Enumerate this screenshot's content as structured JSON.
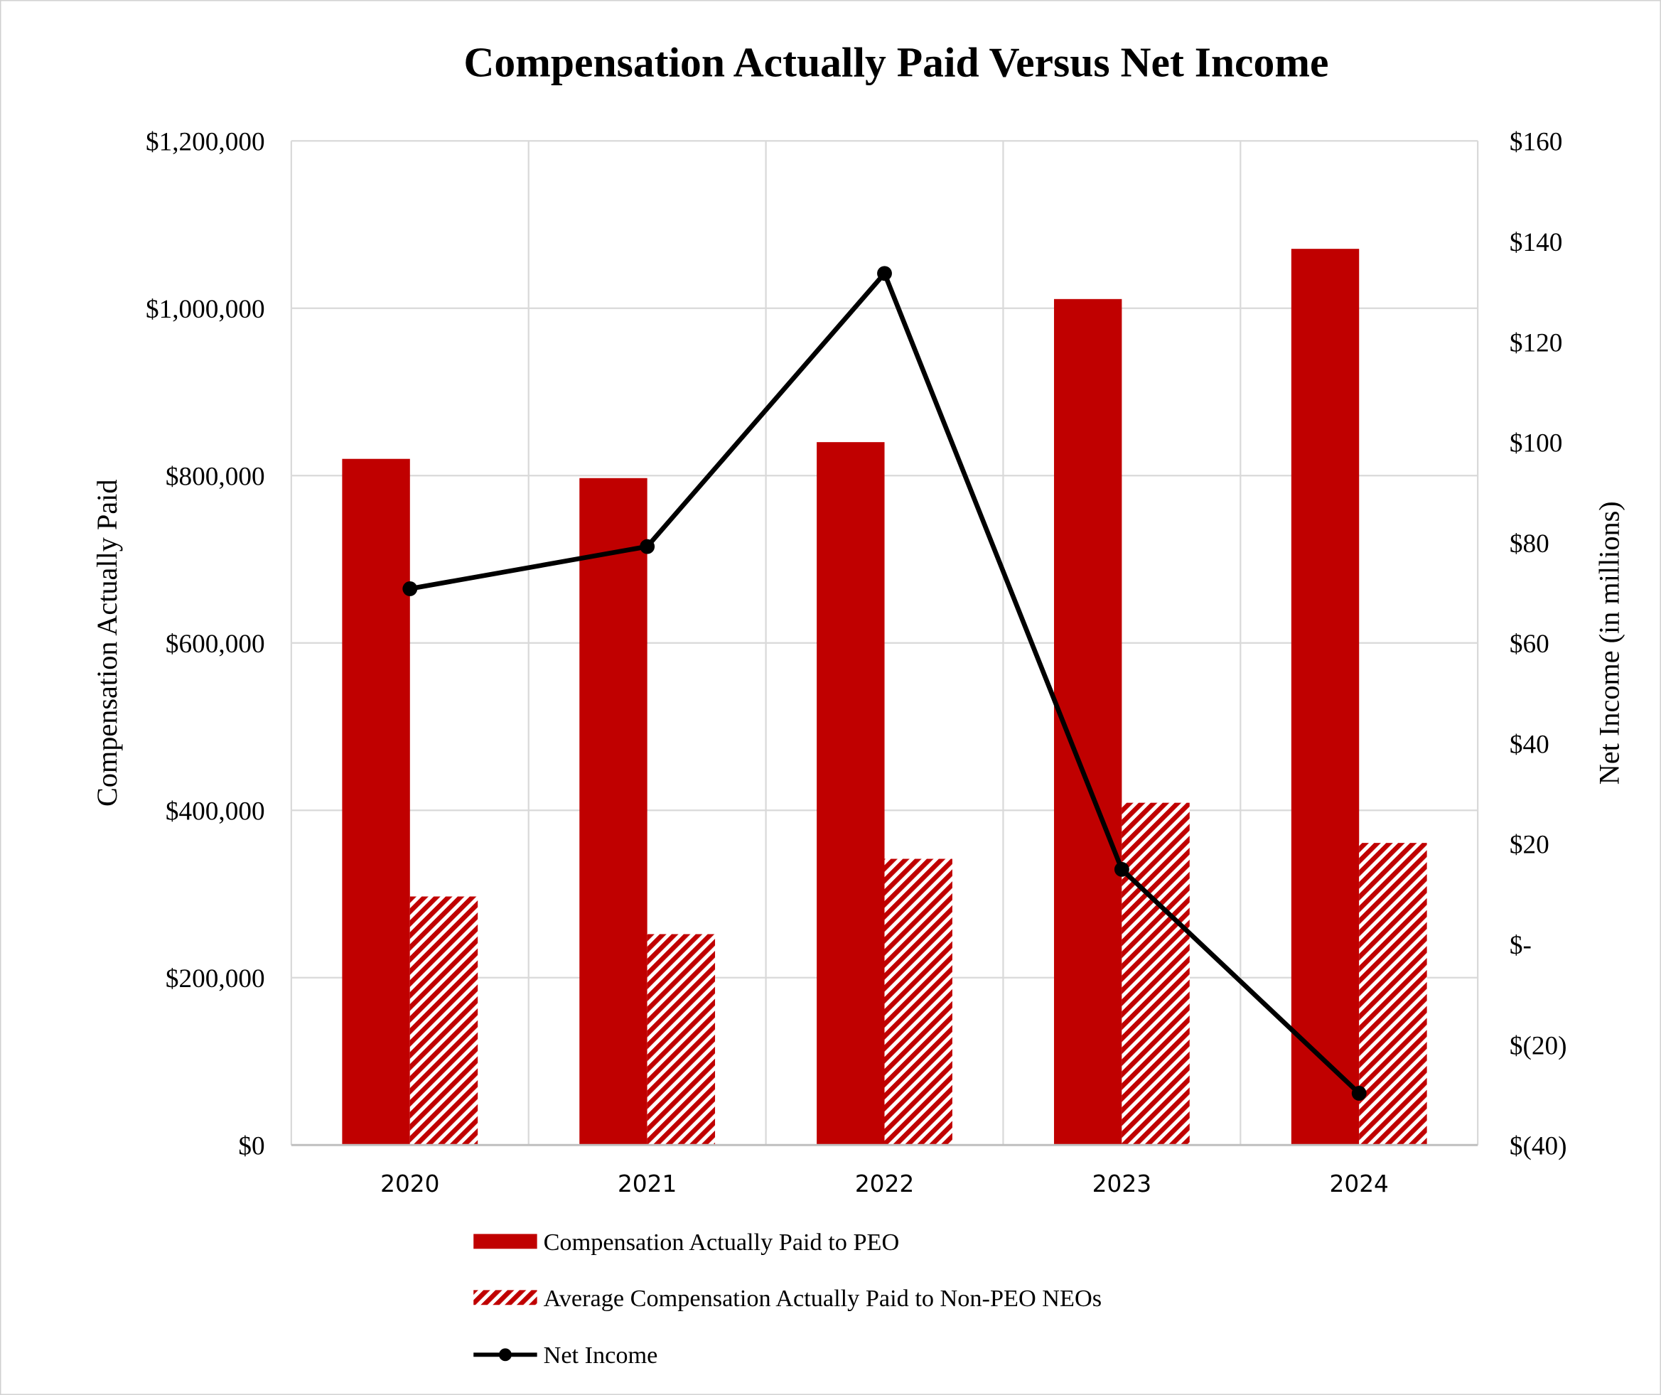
{
  "chart_data": {
    "type": "bar",
    "title": "Compensation Actually Paid Versus Net Income",
    "categories": [
      "2020",
      "2021",
      "2022",
      "2023",
      "2024"
    ],
    "ylabel": "Compensation Actually Paid",
    "y2label": "Net Income  (in millions)",
    "ylim": [
      0,
      1200000
    ],
    "y2lim": [
      -40,
      160
    ],
    "yticks": [
      "$0",
      "$200,000",
      "$400,000",
      "$600,000",
      "$800,000",
      "$1,000,000",
      "$1,200,000"
    ],
    "y2ticks": [
      "$(40)",
      "$(20)",
      "$-",
      "$20",
      "$40",
      "$60",
      "$80",
      "$100",
      "$120",
      "$140",
      "$160"
    ],
    "grid": true,
    "legend_position": "bottom",
    "series": [
      {
        "name": "Compensation Actually Paid to PEO",
        "type": "bar",
        "axis": "left",
        "color": "#C00000",
        "pattern": "solid",
        "values": [
          820000,
          797000,
          840000,
          1011000,
          1071000
        ]
      },
      {
        "name": "Average Compensation Actually Paid to Non-PEO NEOs",
        "type": "bar",
        "axis": "left",
        "color": "#C00000",
        "pattern": "diagonal-hatch",
        "values": [
          297000,
          252000,
          342000,
          409000,
          361000
        ]
      },
      {
        "name": "Net Income",
        "type": "line",
        "axis": "right",
        "color": "#000000",
        "marker": "circle",
        "values": [
          70.8,
          79.2,
          133.6,
          14.9,
          -29.7
        ]
      }
    ]
  }
}
